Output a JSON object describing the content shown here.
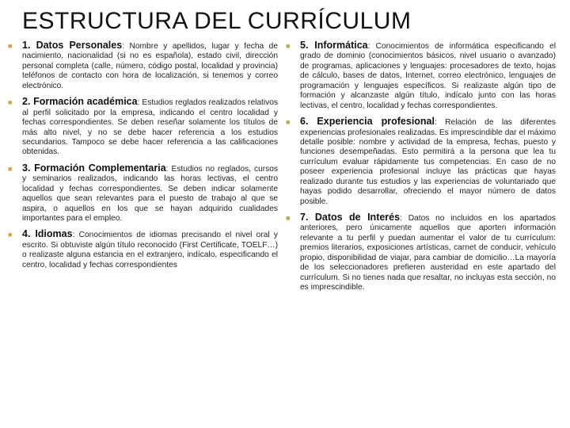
{
  "title": "ESTRUCTURA DEL CURRÍCULUM",
  "bullet_color": "#c9a84a",
  "title_fontsize": 30,
  "body_fontsize": 10.2,
  "lead_fontsize": 12.5,
  "text_color": "#222222",
  "background_color": "#ffffff",
  "left": [
    {
      "lead": "1. Datos Personales",
      "body": ": Nombre y apellidos, lugar y fecha de nacimiento, nacionalidad (si no es española), estado civil, dirección personal completa (calle, número, código postal, localidad y provincia) teléfonos de contacto con hora de localización, si tenemos y correo electrónico."
    },
    {
      "lead": "2. Formación académica",
      "body": ": Estudios reglados realizados relativos al perfil solicitado por la empresa, indicando el centro localidad y fechas correspondientes. Se deben reseñar solamente los títulos de más alto nivel, y no se debe hacer referencia a los estudios secundarios. Tampoco se debe hacer referencia a las calificaciones obtenidas."
    },
    {
      "lead": "3. Formación Complementaria",
      "body": ": Estudios no reglados, cursos y seminarios realizados, indicando las horas lectivas, el centro localidad y fechas correspondientes. Se deben indicar solamente aquellos que sean relevantes para el puesto de trabajo al que se aspira, o aquellos en los que se hayan adquirido cualidades importantes para el empleo."
    },
    {
      "lead": "4. Idiomas",
      "body": ": Conocimientos de idiomas precisando el nivel oral y escrito. Si obtuviste algún título reconocido (First Certificate, TOELF…) o realizaste alguna estancia en el extranjero, indícalo, especificando el centro, localidad y fechas correspondientes"
    }
  ],
  "right": [
    {
      "lead": "5. Informática",
      "body": ": Conocimientos de informática especificando el grado de dominio (conocimientos básicos, nivel usuario o avanzado) de programas, aplicaciones y lenguajes: procesadores de texto, hojas de cálculo, bases de datos, Internet, correo electrónico, lenguajes de programación y lenguajes específicos. Si realizaste algún tipo de formación y alcanzaste algún título, indícalo junto con las horas lectivas, el centro, localidad y fechas correspondientes."
    },
    {
      "lead": "6. Experiencia profesional",
      "body": ": Relación de las diferentes experiencias profesionales realizadas. Es imprescindible dar el máximo detalle posible: nombre y actividad de la empresa, fechas, puesto y funciones desempeñadas. Esto permitirá a la persona que lea tu currículum evaluar rápidamente tus competencias. En caso de no poseer experiencia profesional incluye las prácticas que hayas realizado durante tus estudios y las experiencias de voluntariado que hayas podido desarrollar, ofreciendo el mayor número de datos posible."
    },
    {
      "lead": "7. Datos de Interés",
      "body": ": Datos no incluidos en los apartados anteriores, pero únicamente aquellos que aporten información relevante a tu perfil y puedan aumentar el valor de tu currículum: premios literarios, exposiciones artísticas, carnet de conducir, vehículo propio, disponibilidad de viajar, para cambiar de domicilio…La mayoría de los seleccionadores prefieren austeridad en este apartado del currículum. Si no tienes nada que resaltar, no incluyas esta sección, no es imprescindible."
    }
  ]
}
